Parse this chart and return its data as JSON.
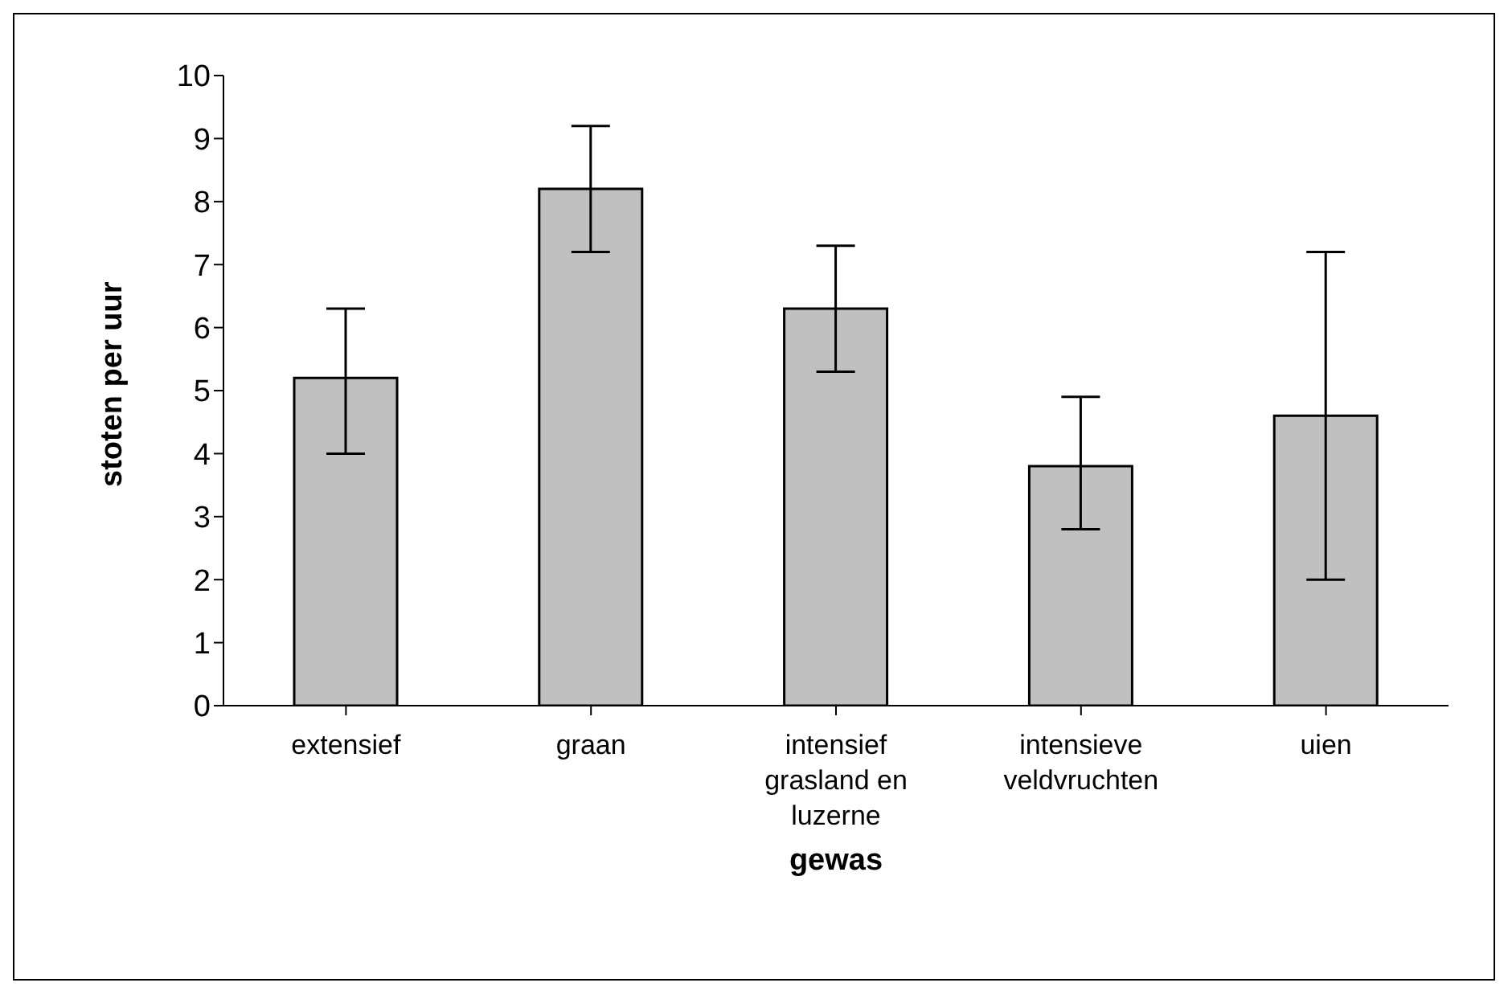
{
  "chart_data": {
    "type": "bar",
    "xlabel": "gewas",
    "ylabel": "stoten per uur",
    "categories": [
      "extensief",
      "graan",
      "intensief grasland en luzerne",
      "intensieve veldvruchten",
      "uien"
    ],
    "values": [
      5.2,
      8.2,
      6.3,
      3.8,
      4.6
    ],
    "errors": [
      [
        4.0,
        6.3
      ],
      [
        7.2,
        9.2
      ],
      [
        5.3,
        7.3
      ],
      [
        2.8,
        4.9
      ],
      [
        2.0,
        7.2
      ]
    ],
    "color": "#c0c0c0",
    "ylim": [
      0,
      10
    ],
    "yticks": [
      0,
      1,
      2,
      3,
      4,
      5,
      6,
      7,
      8,
      9,
      10
    ],
    "grid": false,
    "legend": false
  }
}
